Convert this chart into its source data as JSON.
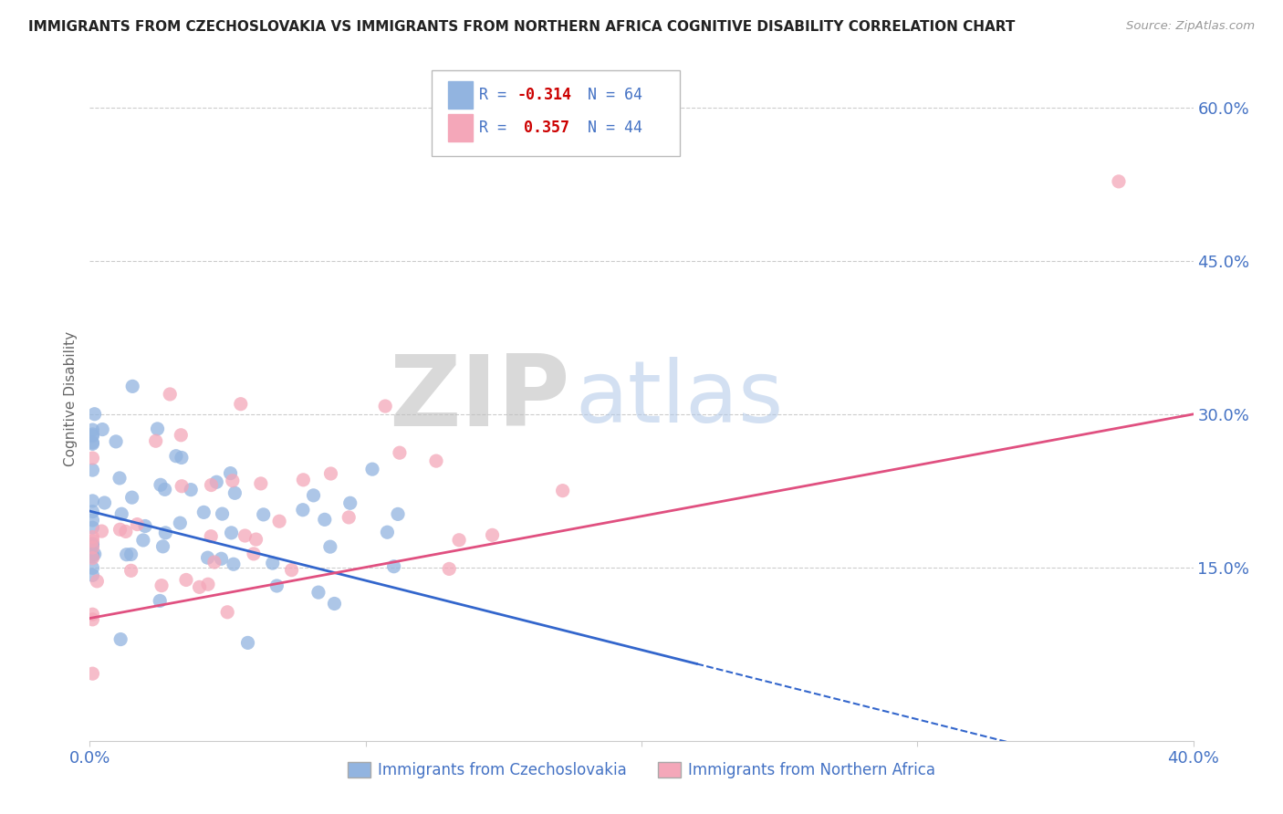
{
  "title": "IMMIGRANTS FROM CZECHOSLOVAKIA VS IMMIGRANTS FROM NORTHERN AFRICA COGNITIVE DISABILITY CORRELATION CHART",
  "source": "Source: ZipAtlas.com",
  "ylabel": "Cognitive Disability",
  "xlim": [
    0.0,
    0.4
  ],
  "ylim": [
    -0.02,
    0.65
  ],
  "yticks": [
    0.15,
    0.3,
    0.45,
    0.6
  ],
  "ytick_labels": [
    "15.0%",
    "30.0%",
    "45.0%",
    "60.0%"
  ],
  "series1": {
    "name": "Immigrants from Czechoslovakia",
    "R": -0.314,
    "N": 64,
    "color": "#92b4e0",
    "trend_color": "#3366cc",
    "label_R": "R = -0.314",
    "label_N": "N = 64"
  },
  "series2": {
    "name": "Immigrants from Northern Africa",
    "R": 0.357,
    "N": 44,
    "color": "#f4a7b9",
    "trend_color": "#e05080",
    "label_R": "R =  0.357",
    "label_N": "N = 44"
  },
  "watermark_ZIP": "ZIP",
  "watermark_atlas": "atlas",
  "background_color": "#ffffff",
  "grid_color": "#cccccc",
  "axis_color": "#4472c4",
  "title_color": "#222222",
  "legend_border_color": "#aaaaaa",
  "seed1": 7,
  "seed2": 13
}
